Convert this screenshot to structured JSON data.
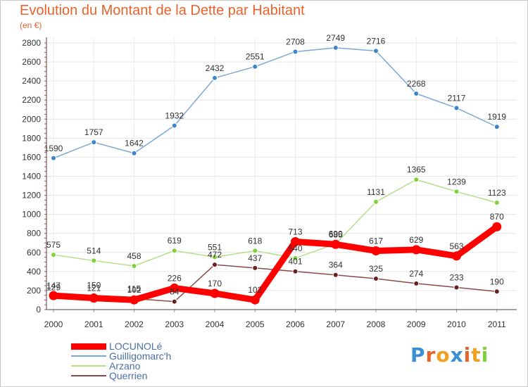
{
  "title": "Evolution du Montant de la Dette par Habitant",
  "unit_label": "(en €)",
  "chart_data": {
    "type": "line",
    "title": "Evolution du Montant de la Dette par Habitant",
    "ylabel": "(en €)",
    "xlabel": "",
    "x": [
      "2000",
      "2001",
      "2002",
      "2003",
      "2004",
      "2005",
      "2006",
      "2007",
      "2008",
      "2009",
      "2010",
      "2011"
    ],
    "y_ticks": [
      0,
      200,
      400,
      600,
      800,
      1000,
      1200,
      1400,
      1600,
      1800,
      2000,
      2200,
      2400,
      2600,
      2800
    ],
    "ylim": [
      0,
      2800
    ],
    "grid": true,
    "legend_position": "bottom-left",
    "series": [
      {
        "name": "LOCUNOLé",
        "color": "#ff0000",
        "point_color": "#ff0000",
        "values": [
          147,
          121,
          102,
          226,
          170,
          102,
          713,
          685,
          617,
          629,
          563,
          870
        ],
        "labels": [
          "147",
          "121",
          "102",
          "226",
          "170",
          "102",
          "713",
          "685",
          "617",
          "629",
          "563",
          "870"
        ]
      },
      {
        "name": "Guilligomarc'h",
        "color": "#7ba7d4",
        "point_color": "#3a86c8",
        "values": [
          1590,
          1757,
          1642,
          1932,
          2432,
          2551,
          2708,
          2749,
          2716,
          2268,
          2117,
          1919
        ],
        "labels": [
          "1590",
          "1757",
          "1642",
          "1932",
          "2432",
          "2551",
          "2708",
          "2749",
          "2716",
          "2268",
          "2117",
          "1919"
        ]
      },
      {
        "name": "Arzano",
        "color": "#b4e08a",
        "point_color": "#7ed13a",
        "values": [
          575,
          514,
          458,
          619,
          551,
          618,
          540,
          690,
          1131,
          1365,
          1239,
          1123
        ],
        "labels": [
          "575",
          "514",
          "458",
          "619",
          "551",
          "618",
          "540",
          "690",
          "1131",
          "1365",
          "1239",
          "1123"
        ]
      },
      {
        "name": "Querrien",
        "color": "#8b4a4a",
        "point_color": "#6b2020",
        "values": [
          129,
          150,
          115,
          84,
          472,
          437,
          401,
          364,
          325,
          274,
          233,
          190
        ],
        "labels": [
          "129",
          "150",
          "115",
          "84",
          "472",
          "437",
          "401",
          "364",
          "325",
          "274",
          "233",
          "190"
        ]
      }
    ]
  },
  "legend": [
    {
      "label": "LOCUNOLé",
      "color": "#ff0000"
    },
    {
      "label": "Guilligomarc'h",
      "color": "#7ba7d4"
    },
    {
      "label": "Arzano",
      "color": "#b4e08a"
    },
    {
      "label": "Querrien",
      "color": "#8b4a4a"
    }
  ],
  "logo": {
    "letters": [
      "P",
      "r",
      "o",
      "x",
      "i",
      "t",
      "i"
    ],
    "colors": [
      "#3b8fd6",
      "#e8632c",
      "#f0a020",
      "#3b8fd6",
      "#e8632c",
      "#f0a020",
      "#7ed13a"
    ]
  }
}
